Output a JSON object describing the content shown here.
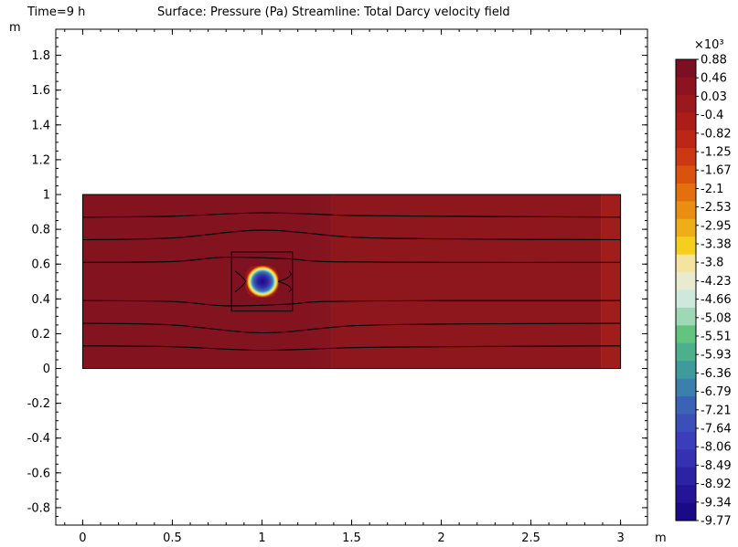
{
  "header": {
    "time_label": "Time=9 h",
    "plot_title": "Surface: Pressure (Pa)  Streamline: Total Darcy velocity field"
  },
  "chart_data": {
    "type": "heatmap",
    "quantity": "Pressure (Pa)",
    "overlay": "Streamline: Total Darcy velocity field",
    "x_unit": "m",
    "y_unit": "m",
    "xlim": [
      -0.15,
      3.15
    ],
    "ylim": [
      -0.9,
      1.95
    ],
    "x_ticks": [
      0,
      0.5,
      1,
      1.5,
      2,
      2.5,
      3
    ],
    "x_tick_labels": [
      "0",
      "0.5",
      "1",
      "1.5",
      "2",
      "2.5",
      "3"
    ],
    "y_ticks": [
      -0.8,
      -0.6,
      -0.4,
      -0.2,
      0,
      0.2,
      0.4,
      0.6,
      0.8,
      1,
      1.2,
      1.4,
      1.6,
      1.8
    ],
    "y_tick_labels": [
      "-0.8",
      "-0.6",
      "-0.4",
      "-0.2",
      "0",
      "0.2",
      "0.4",
      "0.6",
      "0.8",
      "1",
      "1.2",
      "1.4",
      "1.6",
      "1.8"
    ],
    "domain": {
      "x0": 0,
      "x1": 3,
      "y0": 0,
      "y1": 1
    },
    "inclusion": {
      "x0": 0.83,
      "x1": 1.17,
      "y0": 0.33,
      "y1": 0.67,
      "cx": 1.0,
      "cy": 0.5,
      "r": 0.085
    },
    "regions": [
      {
        "x0": 0,
        "x1": 1.39,
        "color": "#83141f"
      },
      {
        "x0": 1.39,
        "x1": 2.89,
        "color": "#8e171d"
      },
      {
        "x0": 2.89,
        "x1": 3.0,
        "color": "#a11d1b"
      }
    ],
    "streamlines": [
      [
        [
          0,
          0.87
        ],
        [
          0.5,
          0.875
        ],
        [
          1.0,
          0.895
        ],
        [
          1.5,
          0.88
        ],
        [
          2.0,
          0.875
        ],
        [
          3.0,
          0.87
        ]
      ],
      [
        [
          0,
          0.74
        ],
        [
          0.5,
          0.75
        ],
        [
          1.0,
          0.795
        ],
        [
          1.5,
          0.755
        ],
        [
          2.0,
          0.745
        ],
        [
          3.0,
          0.74
        ]
      ],
      [
        [
          0,
          0.61
        ],
        [
          0.5,
          0.615
        ],
        [
          0.8,
          0.64
        ],
        [
          1.15,
          0.63
        ],
        [
          1.35,
          0.615
        ],
        [
          2.0,
          0.61
        ],
        [
          3.0,
          0.61
        ]
      ],
      [
        [
          0,
          0.39
        ],
        [
          0.5,
          0.385
        ],
        [
          0.8,
          0.36
        ],
        [
          1.15,
          0.37
        ],
        [
          1.35,
          0.385
        ],
        [
          2.0,
          0.39
        ],
        [
          3.0,
          0.39
        ]
      ],
      [
        [
          0,
          0.26
        ],
        [
          0.5,
          0.25
        ],
        [
          1.0,
          0.205
        ],
        [
          1.5,
          0.245
        ],
        [
          2.0,
          0.255
        ],
        [
          3.0,
          0.26
        ]
      ],
      [
        [
          0,
          0.13
        ],
        [
          0.5,
          0.125
        ],
        [
          1.0,
          0.105
        ],
        [
          1.5,
          0.12
        ],
        [
          2.0,
          0.125
        ],
        [
          3.0,
          0.13
        ]
      ]
    ],
    "colorbar": {
      "multiplier": "×10³",
      "labels": [
        "0.88",
        "0.46",
        "0.03",
        "-0.4",
        "-0.82",
        "-1.25",
        "-1.67",
        "-2.1",
        "-2.53",
        "-2.95",
        "-3.38",
        "-3.8",
        "-4.23",
        "-4.66",
        "-5.08",
        "-5.51",
        "-5.93",
        "-6.36",
        "-6.79",
        "-7.21",
        "-7.64",
        "-8.06",
        "-8.49",
        "-8.92",
        "-9.34",
        "-9.77"
      ],
      "colors": [
        "#7d0f23",
        "#8c1320",
        "#9b181c",
        "#ab1d18",
        "#bb2615",
        "#cc3812",
        "#d9530f",
        "#e3700d",
        "#e98e12",
        "#eeae17",
        "#f4cf1e",
        "#f5e3a0",
        "#e9ead0",
        "#cfe8dd",
        "#9fd8b5",
        "#62c47e",
        "#4cb08d",
        "#3f9a9b",
        "#3a7fae",
        "#3a63b6",
        "#3b4fb9",
        "#3a3ebb",
        "#3531b3",
        "#2c22a4",
        "#231596",
        "#1a0a86"
      ]
    }
  }
}
